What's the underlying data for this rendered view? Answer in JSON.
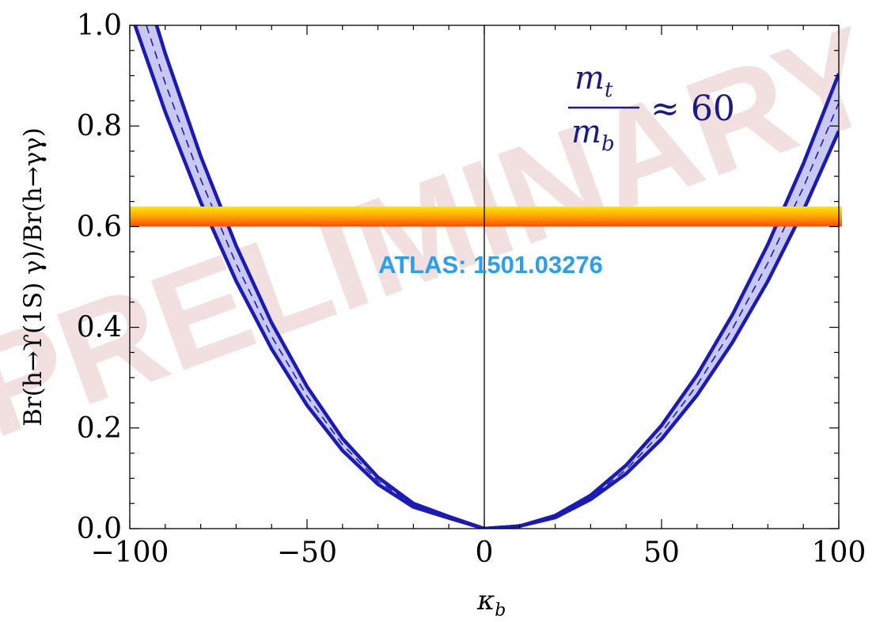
{
  "chart_data": {
    "type": "line",
    "title": "",
    "xlabel": "κ",
    "xlabel_subscript": "b",
    "ylabel": "Br(h→ϒ(1S) γ)/Br(h→γγ)",
    "xlim": [
      -100,
      100
    ],
    "ylim": [
      0.0,
      1.0
    ],
    "x_ticks": [
      "−100",
      "−50",
      "0",
      "50",
      "100"
    ],
    "y_ticks": [
      "0.0",
      "0.2",
      "0.4",
      "0.6",
      "0.8",
      "1.0"
    ],
    "x_tick_values": [
      -100,
      -50,
      0,
      50,
      100
    ],
    "y_tick_values": [
      0.0,
      0.2,
      0.4,
      0.6,
      0.8,
      1.0
    ],
    "series": [
      {
        "style": "dashed",
        "x": [
          -100,
          -90,
          -80,
          -70,
          -60,
          -50,
          -40,
          -30,
          -20,
          -10,
          0,
          10,
          20,
          30,
          40,
          50,
          60,
          70,
          80,
          90,
          100
        ],
        "y": [
          1.101,
          0.885,
          0.694,
          0.526,
          0.382,
          0.263,
          0.167,
          0.095,
          0.047,
          0.023,
          0.0,
          0.005,
          0.024,
          0.062,
          0.117,
          0.191,
          0.285,
          0.397,
          0.528,
          0.678,
          0.846
        ]
      },
      {
        "style": "band-upper",
        "x": [
          -100,
          -90,
          -80,
          -70,
          -60,
          -50,
          -40,
          -30,
          -20,
          -10,
          0,
          10,
          20,
          30,
          40,
          50,
          60,
          70,
          80,
          90,
          100
        ],
        "y": [
          1.174,
          0.944,
          0.74,
          0.562,
          0.409,
          0.282,
          0.179,
          0.102,
          0.05,
          0.024,
          0.0,
          0.005,
          0.026,
          0.066,
          0.126,
          0.205,
          0.305,
          0.425,
          0.565,
          0.725,
          0.904
        ]
      },
      {
        "style": "band-lower",
        "x": [
          -100,
          -90,
          -80,
          -70,
          -60,
          -50,
          -40,
          -30,
          -20,
          -10,
          0,
          10,
          20,
          30,
          40,
          50,
          60,
          70,
          80,
          90,
          100
        ],
        "y": [
          1.03,
          0.828,
          0.649,
          0.492,
          0.357,
          0.245,
          0.155,
          0.088,
          0.043,
          0.021,
          0.0,
          0.005,
          0.022,
          0.058,
          0.109,
          0.178,
          0.265,
          0.37,
          0.492,
          0.632,
          0.79
        ]
      }
    ],
    "limit_band": {
      "y_low": 0.6,
      "y_high": 0.64
    },
    "annotations": {
      "atlas": "ATLAS: 1501.03276",
      "ratio_numerator": "m",
      "ratio_numerator_sub": "t",
      "ratio_denominator": "m",
      "ratio_denominator_sub": "b",
      "ratio_value": "≈ 60",
      "watermark": "PRELIMINARY"
    },
    "colors": {
      "curve": "#1a1ab8",
      "band_fill": "#c8c8f0",
      "atlas_text": "#2a9ff0",
      "watermark": "#e8c8c8",
      "limit_top": "#ffe800",
      "limit_bottom": "#ff4a00",
      "ratio_text": "#1a1a8a"
    },
    "grid": false
  }
}
